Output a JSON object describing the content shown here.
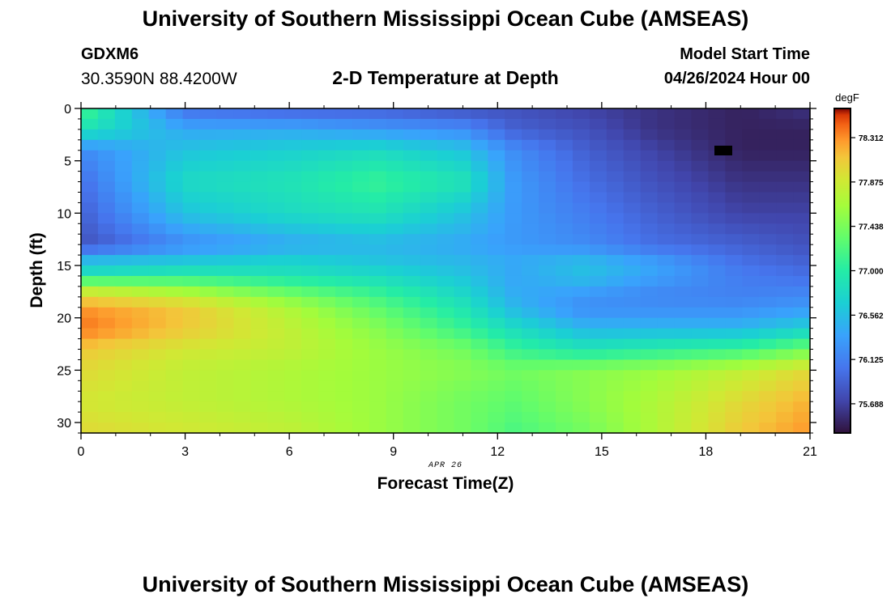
{
  "header": {
    "title": "University of Southern Mississippi Ocean Cube (AMSEAS)",
    "station_id": "GDXM6",
    "station_coords": "30.3590N  88.4200W",
    "subtitle": "2-D Temperature at Depth",
    "model_start_label": "Model Start Time",
    "model_start_value": "04/26/2024 Hour 00"
  },
  "footer": {
    "title": "University of Southern Mississippi Ocean Cube (AMSEAS)"
  },
  "chart_data": {
    "type": "heatmap",
    "title": "2-D Temperature at Depth",
    "xlabel": "Forecast Time(Z)",
    "ylabel": "Depth (ft)",
    "date_label": "APR 26",
    "x_ticks": [
      0,
      3,
      6,
      9,
      12,
      15,
      18,
      21
    ],
    "y_ticks": [
      0,
      5,
      10,
      15,
      20,
      25,
      30
    ],
    "xlim": [
      0,
      21
    ],
    "ylim": [
      0,
      31
    ],
    "y_inverted": true,
    "colorbar": {
      "unit": "degF",
      "range": [
        75.4,
        78.6
      ],
      "ticks": [
        78.312,
        77.875,
        77.438,
        77.0,
        76.562,
        76.125,
        75.688
      ]
    },
    "x_knots": [
      0,
      3,
      6,
      8.5,
      11,
      12.5,
      14.5,
      16.5,
      19,
      21
    ],
    "depth_knots": [
      0,
      2,
      4,
      7,
      10,
      13,
      14.5,
      16,
      17,
      19,
      21,
      23,
      25,
      28,
      31
    ],
    "temperature_grid": [
      [
        77.2,
        76.0,
        75.9,
        75.9,
        75.8,
        75.8,
        75.7,
        75.6,
        75.5,
        75.6
      ],
      [
        76.9,
        76.4,
        76.4,
        76.3,
        76.2,
        75.9,
        75.8,
        75.6,
        75.5,
        75.5
      ],
      [
        76.2,
        76.6,
        76.7,
        76.8,
        76.6,
        76.2,
        75.9,
        75.7,
        75.5,
        75.5
      ],
      [
        76.0,
        76.8,
        76.9,
        77.1,
        76.9,
        76.3,
        76.0,
        75.8,
        75.6,
        75.6
      ],
      [
        75.9,
        76.6,
        76.8,
        76.9,
        76.6,
        76.3,
        76.1,
        75.9,
        75.7,
        75.7
      ],
      [
        75.8,
        76.2,
        76.4,
        76.5,
        76.4,
        76.3,
        76.2,
        76.0,
        75.9,
        75.8
      ],
      [
        76.5,
        76.6,
        76.7,
        76.6,
        76.5,
        76.4,
        76.5,
        76.3,
        76.0,
        75.9
      ],
      [
        76.9,
        77.0,
        76.9,
        76.8,
        76.6,
        76.4,
        76.6,
        76.4,
        76.1,
        76.0
      ],
      [
        77.7,
        77.5,
        77.2,
        77.0,
        76.7,
        76.4,
        76.4,
        76.2,
        76.1,
        76.1
      ],
      [
        78.3,
        78.1,
        77.7,
        77.3,
        76.9,
        76.5,
        76.2,
        76.2,
        76.2,
        76.3
      ],
      [
        78.4,
        78.1,
        77.8,
        77.5,
        77.1,
        76.8,
        76.5,
        76.5,
        76.5,
        76.7
      ],
      [
        78.1,
        77.9,
        77.8,
        77.6,
        77.4,
        77.1,
        76.9,
        77.0,
        77.1,
        77.4
      ],
      [
        78.0,
        77.8,
        77.7,
        77.6,
        77.5,
        77.4,
        77.5,
        77.6,
        77.8,
        78.0
      ],
      [
        77.9,
        77.8,
        77.7,
        77.6,
        77.4,
        77.3,
        77.5,
        77.7,
        78.0,
        78.2
      ],
      [
        78.0,
        77.9,
        77.8,
        77.6,
        77.4,
        77.2,
        77.4,
        77.7,
        78.1,
        78.3
      ]
    ]
  }
}
